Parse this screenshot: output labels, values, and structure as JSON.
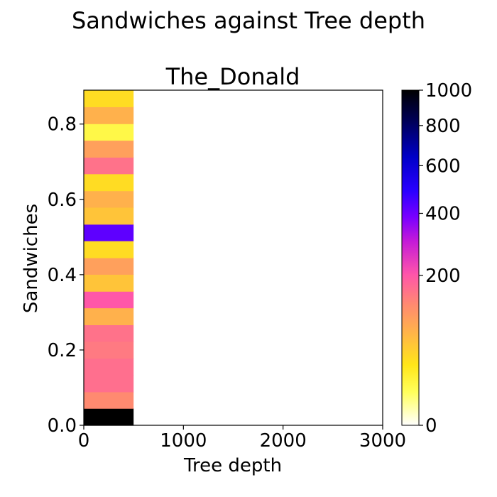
{
  "chart_data": {
    "type": "heatmap",
    "suptitle": "Sandwiches against Tree depth",
    "title": "The_Donald",
    "xlabel": "Tree depth",
    "ylabel": "Sandwiches",
    "xlim": [
      0,
      3000
    ],
    "ylim": [
      0,
      0.89
    ],
    "x_ticks": [
      0,
      1000,
      2000,
      3000
    ],
    "y_ticks": [
      0.0,
      0.2,
      0.4,
      0.6,
      0.8
    ],
    "x_tick_labels": [
      "0",
      "1000",
      "2000",
      "3000"
    ],
    "y_tick_labels": [
      "0.0",
      "0.2",
      "0.4",
      "0.6",
      "0.8"
    ],
    "colormap": "gnuplot2_r",
    "color_scale": "power",
    "colorbar": {
      "range": [
        0,
        1000
      ],
      "ticks": [
        0,
        200,
        400,
        600,
        800,
        1000
      ],
      "tick_labels": [
        "0",
        "200",
        "400",
        "600",
        "800",
        "1000"
      ]
    },
    "cells": [
      {
        "x0": 0,
        "x1": 500,
        "y0": 0.0,
        "y1": 0.045,
        "count": 1000
      },
      {
        "x0": 0,
        "x1": 500,
        "y0": 0.045,
        "y1": 0.089,
        "count": 130
      },
      {
        "x0": 0,
        "x1": 500,
        "y0": 0.089,
        "y1": 0.134,
        "count": 165
      },
      {
        "x0": 0,
        "x1": 500,
        "y0": 0.134,
        "y1": 0.178,
        "count": 165
      },
      {
        "x0": 0,
        "x1": 500,
        "y0": 0.178,
        "y1": 0.223,
        "count": 150
      },
      {
        "x0": 0,
        "x1": 500,
        "y0": 0.223,
        "y1": 0.267,
        "count": 160
      },
      {
        "x0": 0,
        "x1": 500,
        "y0": 0.267,
        "y1": 0.312,
        "count": 80
      },
      {
        "x0": 0,
        "x1": 500,
        "y0": 0.312,
        "y1": 0.356,
        "count": 200
      },
      {
        "x0": 0,
        "x1": 500,
        "y0": 0.356,
        "y1": 0.401,
        "count": 60
      },
      {
        "x0": 0,
        "x1": 500,
        "y0": 0.401,
        "y1": 0.445,
        "count": 100
      },
      {
        "x0": 0,
        "x1": 500,
        "y0": 0.445,
        "y1": 0.49,
        "count": 40
      },
      {
        "x0": 0,
        "x1": 500,
        "y0": 0.49,
        "y1": 0.534,
        "count": 420
      },
      {
        "x0": 0,
        "x1": 500,
        "y0": 0.534,
        "y1": 0.579,
        "count": 60
      },
      {
        "x0": 0,
        "x1": 500,
        "y0": 0.579,
        "y1": 0.623,
        "count": 80
      },
      {
        "x0": 0,
        "x1": 500,
        "y0": 0.623,
        "y1": 0.668,
        "count": 40
      },
      {
        "x0": 0,
        "x1": 500,
        "y0": 0.668,
        "y1": 0.712,
        "count": 160
      },
      {
        "x0": 0,
        "x1": 500,
        "y0": 0.712,
        "y1": 0.757,
        "count": 100
      },
      {
        "x0": 0,
        "x1": 500,
        "y0": 0.757,
        "y1": 0.801,
        "count": 15
      },
      {
        "x0": 0,
        "x1": 500,
        "y0": 0.801,
        "y1": 0.846,
        "count": 80
      },
      {
        "x0": 0,
        "x1": 500,
        "y0": 0.846,
        "y1": 0.89,
        "count": 40
      }
    ]
  }
}
